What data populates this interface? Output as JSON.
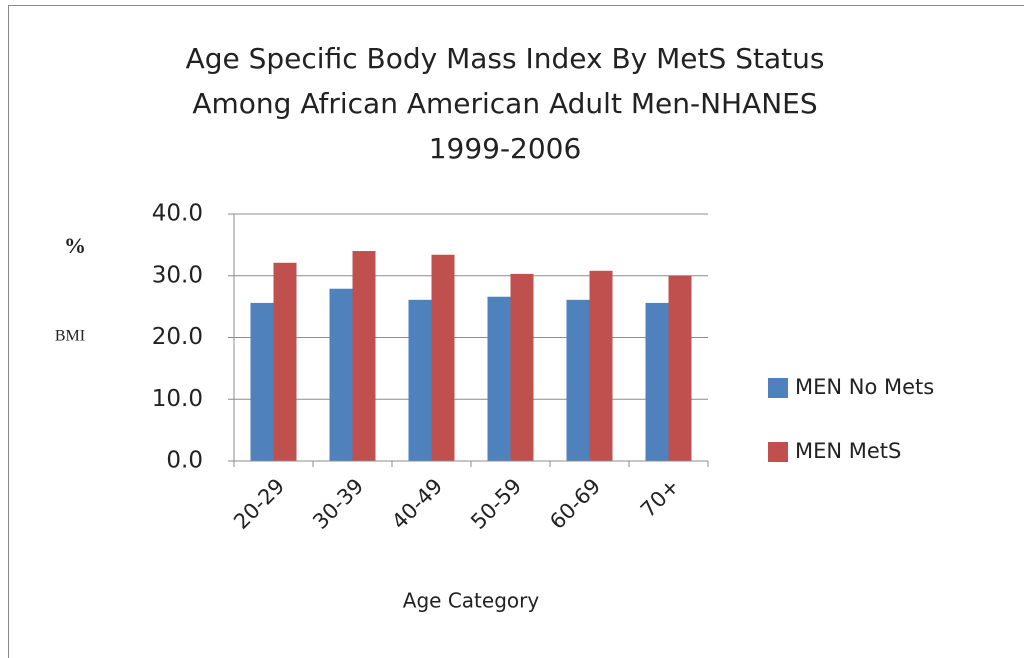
{
  "chart_data": {
    "type": "bar",
    "title": [
      "Age Specific Body Mass Index By MetS Status",
      "Among African American  Adult Men-NHANES",
      "1999-2006"
    ],
    "ylabel": [
      "%",
      "BMI"
    ],
    "xlabel": "Age Category",
    "categories": [
      "20-29",
      "30-39",
      "40-49",
      "50-59",
      "60-69",
      "70+"
    ],
    "series": [
      {
        "name": "MEN No Mets",
        "color": "#4f81bd",
        "values": [
          25.6,
          27.9,
          26.1,
          26.6,
          26.1,
          25.6
        ]
      },
      {
        "name": "MEN MetS",
        "color": "#c0504d",
        "values": [
          32.1,
          34.0,
          33.4,
          30.3,
          30.8,
          30.0
        ]
      }
    ],
    "ylim": [
      0,
      40
    ],
    "yticks": [
      {
        "value": 0,
        "label": "0.0"
      },
      {
        "value": 10,
        "label": "10.0"
      },
      {
        "value": 20,
        "label": "20.0"
      },
      {
        "value": 30,
        "label": "30.0"
      },
      {
        "value": 40,
        "label": "40.0"
      }
    ],
    "grid": true,
    "legend": "right"
  }
}
